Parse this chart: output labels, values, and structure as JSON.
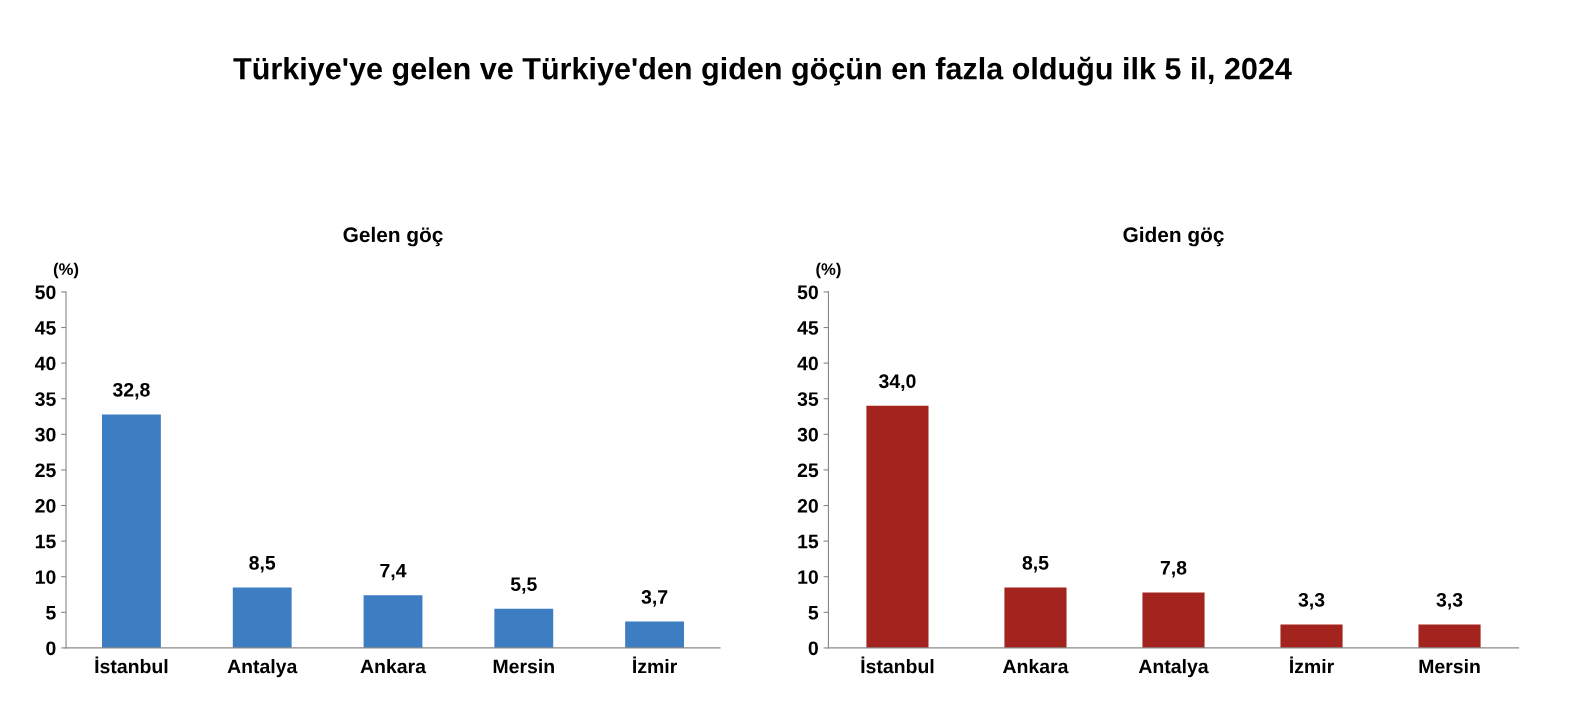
{
  "chart_data": [
    {
      "type": "bar",
      "title": "Gelen göç",
      "ylabel": "(%)",
      "annotations": [
        "Türkiye'ye gelen ve Türkiye'den giden göçün en fazla olduğu ilk 5 il, 2024"
      ],
      "categories": [
        "İstanbul",
        "Antalya",
        "Ankara",
        "Mersin",
        "İzmir"
      ],
      "values": [
        32.8,
        8.5,
        7.4,
        5.5,
        3.7
      ],
      "value_labels": [
        "32,8",
        "8,5",
        "7,4",
        "5,5",
        "3,7"
      ],
      "color": "#3d7dc2",
      "ylim": [
        0,
        50
      ],
      "yticks": [
        0,
        5,
        10,
        15,
        20,
        25,
        30,
        35,
        40,
        45,
        50
      ],
      "grid": false,
      "legend": false
    },
    {
      "type": "bar",
      "title": "Giden göç",
      "ylabel": "(%)",
      "categories": [
        "İstanbul",
        "Ankara",
        "Antalya",
        "İzmir",
        "Mersin"
      ],
      "values": [
        34.0,
        8.5,
        7.8,
        3.3,
        3.3
      ],
      "value_labels": [
        "34,0",
        "8,5",
        "7,8",
        "3,3",
        "3,3"
      ],
      "color": "#a3231f",
      "ylim": [
        0,
        50
      ],
      "yticks": [
        0,
        5,
        10,
        15,
        20,
        25,
        30,
        35,
        40,
        45,
        50
      ],
      "grid": false,
      "legend": false
    }
  ]
}
